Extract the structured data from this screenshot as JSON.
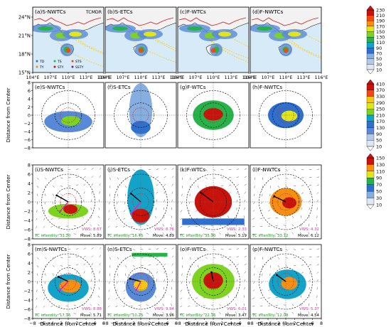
{
  "colors": {
    "ocean": "#d6eaf8",
    "land": "#f2f2f2",
    "coast": "#222222",
    "cnBorder": "#e31a1c",
    "vws": "#e0309e",
    "intensity": "#1a9a1a",
    "move": "#000000",
    "motionArrow": "#000000",
    "shearArrow": "#e81cc1",
    "radiusCircle": "#000000",
    "rmwCircle": "#e31a1c"
  },
  "palette": [
    "#ffffff",
    "#dde7f5",
    "#b3c9ea",
    "#87aee0",
    "#5889d6",
    "#2f6fce",
    "#13a3c9",
    "#27b34a",
    "#7ed321",
    "#e2e619",
    "#fac70f",
    "#f78f12",
    "#ef4a11",
    "#c8120c"
  ],
  "colorbars": [
    {
      "id": "cb1",
      "ticks": [
        "230",
        "210",
        "190",
        "170",
        "150",
        "130",
        "110",
        "90",
        "70",
        "50",
        "30",
        "10"
      ]
    },
    {
      "id": "cb2",
      "ticks": [
        "410",
        "370",
        "330",
        "290",
        "250",
        "210",
        "170",
        "130",
        "90",
        "50",
        "10"
      ]
    },
    {
      "id": "cb3",
      "ticks": [
        "150",
        "130",
        "110",
        "90",
        "70",
        "50",
        "30",
        "10"
      ]
    }
  ],
  "tcmdr_label": "TCMDR",
  "axes": {
    "ylabel": "Distance from Center",
    "xlabel": "Distance from Center",
    "map_xticks": [
      "104°E",
      "107°E",
      "110°E",
      "113°E",
      "116°E"
    ],
    "map_yticks": [
      "24°N",
      "21°N",
      "18°N",
      "15°N"
    ],
    "xticks": [
      "−8",
      "−6",
      "−4",
      "−2",
      "0",
      "2",
      "4",
      "6",
      "8"
    ],
    "yticks": [
      "8",
      "6",
      "4",
      "2",
      "0",
      "−2",
      "−4",
      "−6",
      "−8"
    ]
  },
  "legend": [
    "TD",
    "TS",
    "STS",
    "TY",
    "STY",
    "SSTY"
  ],
  "map_panels": [
    {
      "label": "(a)S-NWTCs",
      "trackColor": "#ffd000"
    },
    {
      "label": "(b)S-ETCs",
      "trackColor": "#ffd000"
    },
    {
      "label": "(c)F-WTCs",
      "trackColor": "#ffd000"
    },
    {
      "label": "(d)F-NWTCs",
      "trackColor": "#ffd000"
    }
  ],
  "polar_rows": [
    {
      "vws": false,
      "panels": [
        {
          "label": "(e)S-NWTCs"
        },
        {
          "label": "(f)S-ETCs"
        },
        {
          "label": "(g)F-WTCs"
        },
        {
          "label": "(h)F-NWTCs"
        }
      ]
    },
    {
      "vws": true,
      "panels": [
        {
          "label": "(i)S-NWTCs",
          "vws": "VWS: 8.67",
          "intensity": "TC intensity: 33.20",
          "move": "Move: 5.89"
        },
        {
          "label": "(j)S-ETCs",
          "vws": "VWS: 8.76",
          "intensity": "TC intensity: 16.45",
          "move": "Move: 4.89"
        },
        {
          "label": "(k)F-WTCs",
          "vws": "VWS: 2.33",
          "intensity": "TC intensity: 35.90",
          "move": "Move: 5.19"
        },
        {
          "label": "(l)F-NWTCs",
          "vws": "VWS: 4.32",
          "intensity": "TC intensity: 33.12",
          "move": "Move: 6.12"
        }
      ]
    },
    {
      "vws": true,
      "panels": [
        {
          "label": "(m)S-NWTCs",
          "vws": "VWS: 8.88",
          "intensity": "TC intensity: 17.16",
          "move": "Move: 5.71"
        },
        {
          "label": "(n)S-ETCs",
          "vws": "VWS: 9.94",
          "intensity": "TC intensity: 10.25",
          "move": "Move: 3.96"
        },
        {
          "label": "(o)F-WTCs",
          "vws": "VWS: 6.01",
          "intensity": "TC intensity: 22.16",
          "move": "Move: 3.47"
        },
        {
          "label": "(p)F-NWTCs",
          "vws": "VWS: 5.37",
          "intensity": "TC intensity: 12.08",
          "move": "Move: 4.54"
        }
      ]
    }
  ],
  "chart_data": {
    "type": "heatmap",
    "title": "",
    "rows": [
      {
        "panels": [
          "(a)S-NWTCs",
          "(b)S-ETCs",
          "(c)F-WTCs",
          "(d)F-NWTCs"
        ],
        "colorbar": [
          10,
          30,
          50,
          70,
          90,
          110,
          130,
          150,
          170,
          190,
          210,
          230
        ],
        "xlim": [
          104,
          116
        ],
        "ylim": [
          15,
          26
        ],
        "xticks": [
          "104°E",
          "107°E",
          "110°E",
          "113°E",
          "116°E"
        ],
        "yticks": [
          "24°N",
          "21°N",
          "18°N",
          "15°N"
        ]
      },
      {
        "panels": [
          "(e)S-NWTCs",
          "(f)S-ETCs",
          "(g)F-WTCs",
          "(h)F-NWTCs"
        ],
        "colorbar": [
          10,
          50,
          90,
          130,
          170,
          210,
          250,
          290,
          330,
          370,
          410
        ],
        "xlim": [
          -8,
          8
        ],
        "ylim": [
          -8,
          8
        ],
        "ylabel": "Distance from Center"
      },
      {
        "panels": [
          "(i)S-NWTCs",
          "(j)S-ETCs",
          "(k)F-WTCs",
          "(l)F-NWTCs"
        ],
        "colorbar": [
          10,
          30,
          50,
          70,
          90,
          110,
          130,
          150
        ],
        "xlim": [
          -8,
          8
        ],
        "ylim": [
          -8,
          8
        ],
        "ylabel": "Distance from Center",
        "vws": [
          8.67,
          8.76,
          2.33,
          4.32
        ],
        "tc_intensity": [
          33.2,
          16.45,
          35.9,
          33.12
        ],
        "move": [
          5.89,
          4.89,
          5.19,
          6.12
        ]
      },
      {
        "panels": [
          "(m)S-NWTCs",
          "(n)S-ETCs",
          "(o)F-WTCs",
          "(p)F-NWTCs"
        ],
        "colorbar": [
          10,
          30,
          50,
          70,
          90,
          110,
          130,
          150
        ],
        "xlim": [
          -8,
          8
        ],
        "ylim": [
          -8,
          8
        ],
        "ylabel": "Distance from Center",
        "xlabel": "Distance from Center",
        "vws": [
          8.88,
          9.94,
          6.01,
          5.37
        ],
        "tc_intensity": [
          17.16,
          10.25,
          22.16,
          12.08
        ],
        "move": [
          5.71,
          3.96,
          3.47,
          4.54
        ]
      }
    ],
    "rain_blobs": [
      [
        {
          "x": 0,
          "y": -2,
          "rx": 4.5,
          "ry": 1.6,
          "v": 90
        },
        {
          "x": 0.5,
          "y": -1.6,
          "rx": 1.6,
          "ry": 1,
          "v": 210
        }
      ],
      [
        {
          "x": 0,
          "y": 1,
          "rx": 3,
          "ry": 6,
          "v": 70
        },
        {
          "x": 0,
          "y": -3,
          "rx": 2,
          "ry": 1.5,
          "v": 170
        }
      ],
      [
        {
          "x": 0,
          "y": 0,
          "rx": 4.2,
          "ry": 3.4,
          "v": 170
        },
        {
          "x": 0,
          "y": 0.2,
          "rx": 2,
          "ry": 1.4,
          "v": 410
        }
      ],
      [
        {
          "x": 0,
          "y": 0,
          "rx": 3.6,
          "ry": 3,
          "v": 130
        },
        {
          "x": 0.8,
          "y": -0.2,
          "rx": 1.6,
          "ry": 1.2,
          "v": 250
        }
      ],
      [
        {
          "x": 0,
          "y": -1.4,
          "rx": 4.6,
          "ry": 3,
          "v": 70
        },
        {
          "x": 0.4,
          "y": -1,
          "rx": 2.4,
          "ry": 1.4,
          "v": 130
        }
      ],
      [
        {
          "x": 0,
          "y": -1.2,
          "rx": 3.4,
          "ry": 3.2,
          "v": 50
        },
        {
          "x": 0,
          "y": -0.8,
          "rx": 1.6,
          "ry": 1.2,
          "v": 110
        }
      ],
      [
        {
          "x": 0,
          "y": 0,
          "rx": 4.8,
          "ry": 3.8,
          "v": 90
        },
        {
          "x": 0,
          "y": 0.2,
          "rx": 2.2,
          "ry": 1.8,
          "v": 150
        }
      ],
      [
        {
          "x": 0.4,
          "y": -0.6,
          "rx": 4.2,
          "ry": 3.2,
          "v": 70
        },
        {
          "x": 0.8,
          "y": -0.4,
          "rx": 1.8,
          "ry": 1.4,
          "v": 130
        }
      ],
      [
        {
          "x": 0.6,
          "y": -1.8,
          "rx": 4.2,
          "ry": 2,
          "v": 70
        },
        {
          "x": 1.2,
          "y": -1.4,
          "rx": 1.8,
          "ry": 1,
          "v": 130
        }
      ],
      [
        {
          "x": 1,
          "y": -2.4,
          "rx": 3.4,
          "ry": 1.8,
          "v": 50
        },
        {
          "x": 1.4,
          "y": -2.2,
          "rx": 1.2,
          "ry": 0.8,
          "v": 110
        }
      ],
      [
        {
          "x": 0.4,
          "y": -0.6,
          "rx": 2.6,
          "ry": 3.6,
          "v": 70
        },
        {
          "x": 0.6,
          "y": -0.2,
          "rx": 1.2,
          "ry": 1.4,
          "v": 150
        }
      ],
      [
        {
          "x": 0.6,
          "y": -1,
          "rx": 3,
          "ry": 2.6,
          "v": 70
        },
        {
          "x": 1.2,
          "y": -0.8,
          "rx": 1.4,
          "ry": 1,
          "v": 130
        }
      ]
    ],
    "motion_vectors": [
      [
        -2.6,
        1.4
      ],
      [
        -2.2,
        1.8
      ],
      [
        -2.8,
        2
      ],
      [
        -2.6,
        1.2
      ],
      [
        -2.2,
        1
      ],
      [
        -2.4,
        0.6
      ],
      [
        -0.4,
        2
      ],
      [
        -2,
        1.4
      ]
    ],
    "shear_vectors": [
      [
        -1.8,
        -2
      ],
      [
        -2.2,
        -2.6
      ],
      null,
      null,
      [
        -2,
        -2
      ],
      [
        -1,
        -1.8
      ],
      null,
      null
    ]
  }
}
